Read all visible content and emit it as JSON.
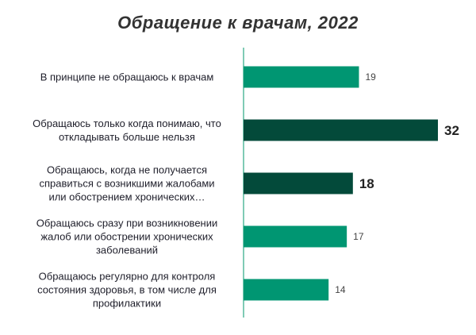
{
  "chart_data": {
    "type": "bar",
    "orientation": "horizontal",
    "title": "Обращение к врачам, 2022",
    "categories": [
      "В принципе не обращаюсь к врачам",
      "Обращаюсь только когда понимаю, что откладывать больше нельзя",
      "Обращаюсь, когда не получается справиться с возникшими жалобами или обострением хронических…",
      "Обращаюсь сразу при возникновении жалоб или обострении хронических заболеваний",
      "Обращаюсь регулярно для контроля состояния здоровья, в том числе для профилактики"
    ],
    "category_lines": [
      [
        "В принципе не обращаюсь к врачам"
      ],
      [
        "Обращаюсь только когда понимаю, что",
        "откладывать больше нельзя"
      ],
      [
        "Обращаюсь, когда не получается",
        "справиться с возникшими жалобами",
        "или обострением хронических…"
      ],
      [
        "Обращаюсь сразу при возникновении",
        "жалоб или обострении хронических",
        "заболеваний"
      ],
      [
        "Обращаюсь регулярно для контроля",
        "состояния здоровья, в том числе для",
        "профилактики"
      ]
    ],
    "values": [
      19,
      32,
      18,
      17,
      14
    ],
    "highlighted": [
      false,
      true,
      true,
      false,
      false
    ],
    "colors": {
      "normal": "#009672",
      "highlight": "#034a3a",
      "axis": "#7fcbb5"
    },
    "xlim": [
      0,
      32
    ]
  }
}
